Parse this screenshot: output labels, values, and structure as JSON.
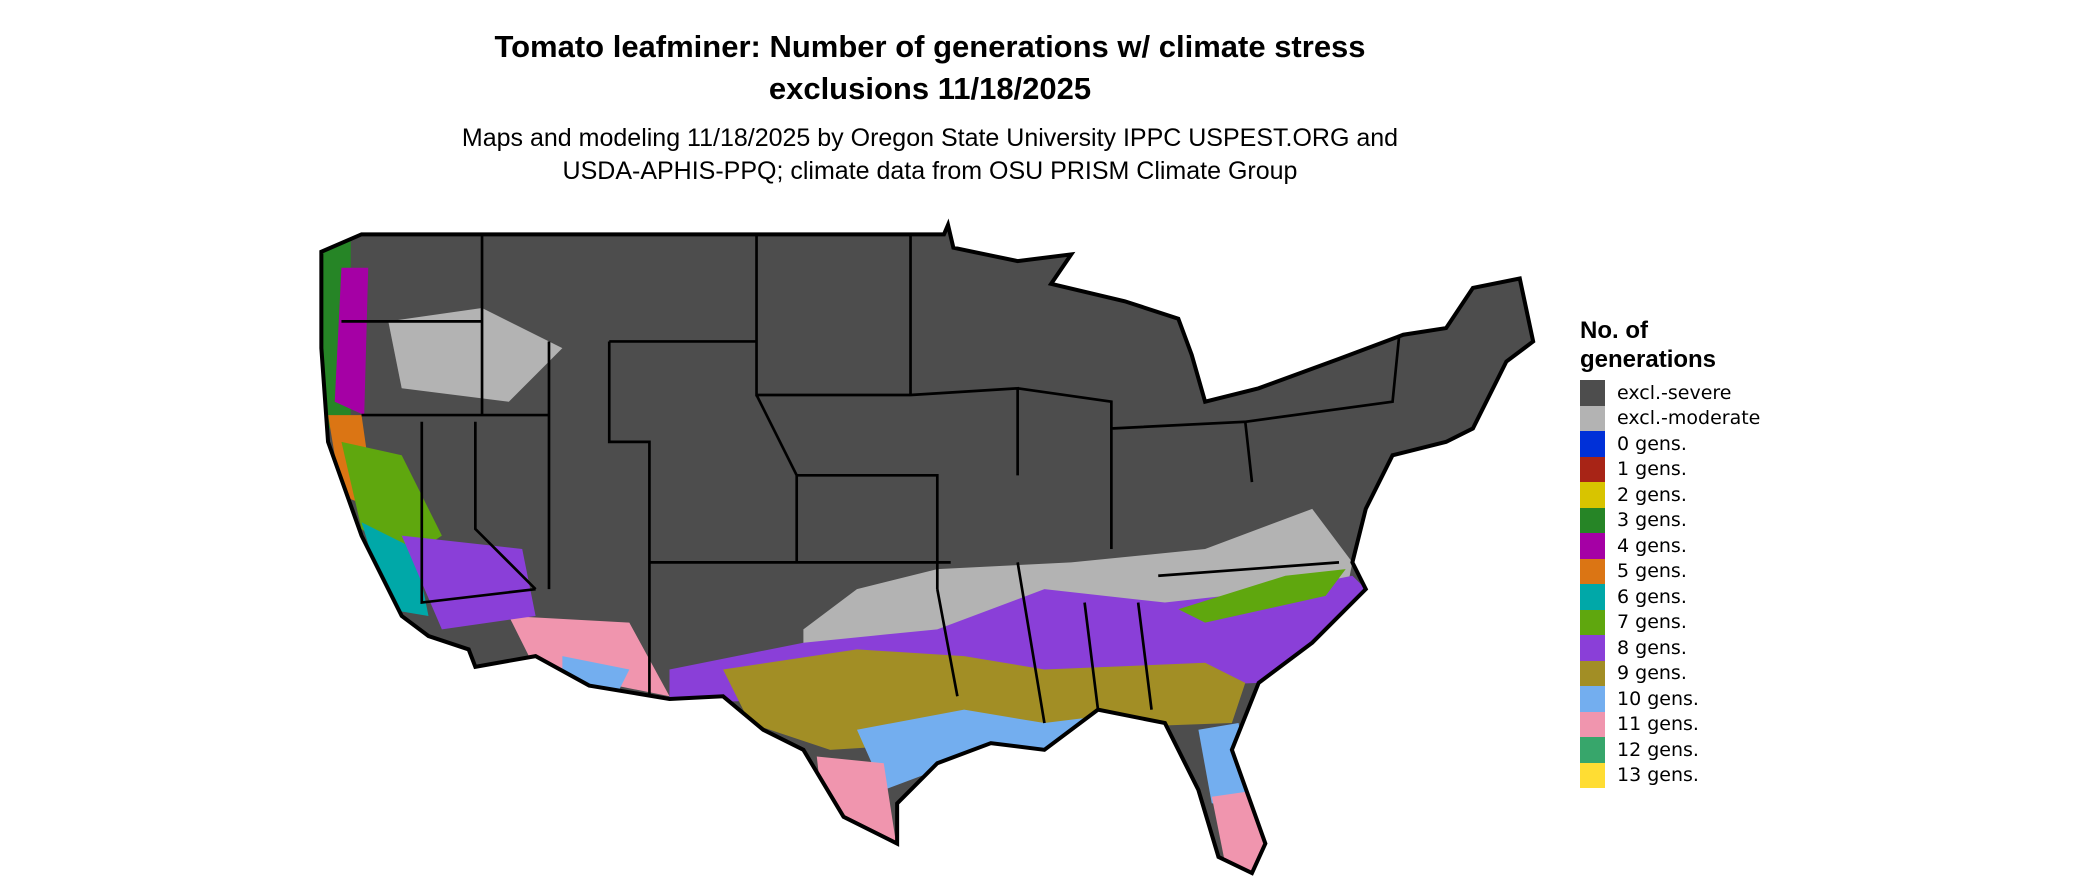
{
  "title": {
    "line1": "Tomato leafminer: Number of generations w/ climate stress",
    "line2": "exclusions 11/18/2025"
  },
  "subtitle": {
    "line1": "Maps and modeling 11/18/2025 by Oregon State University IPPC USPEST.ORG and",
    "line2": "USDA-APHIS-PPQ; climate data from OSU PRISM Climate Group"
  },
  "legend": {
    "title": "No. of generations",
    "items": [
      {
        "label": "excl.-severe",
        "color": "#4d4d4d"
      },
      {
        "label": "excl.-moderate",
        "color": "#b3b3b3"
      },
      {
        "label": "0 gens.",
        "color": "#0030d8"
      },
      {
        "label": "1 gens.",
        "color": "#a82416"
      },
      {
        "label": "2 gens.",
        "color": "#d8c400"
      },
      {
        "label": "3 gens.",
        "color": "#268526"
      },
      {
        "label": "4 gens.",
        "color": "#a500a5"
      },
      {
        "label": "5 gens.",
        "color": "#db7514"
      },
      {
        "label": "6 gens.",
        "color": "#00a8a8"
      },
      {
        "label": "7 gens.",
        "color": "#5fa70e"
      },
      {
        "label": "8 gens.",
        "color": "#8a3fd8"
      },
      {
        "label": "9 gens.",
        "color": "#a28e25"
      },
      {
        "label": "10 gens.",
        "color": "#73aeef"
      },
      {
        "label": "11 gens.",
        "color": "#f095ae"
      },
      {
        "label": "12 gens.",
        "color": "#37a66b"
      },
      {
        "label": "13 gens.",
        "color": "#ffdd33"
      }
    ]
  }
}
